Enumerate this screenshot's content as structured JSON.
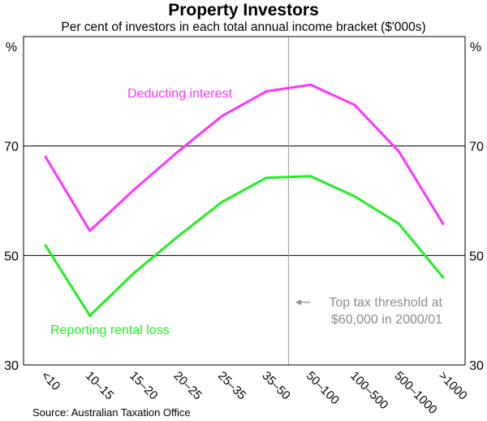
{
  "chart_data": {
    "type": "line",
    "title": "Property Investors",
    "subtitle": "Per cent of investors in each total annual income bracket ($'000s)",
    "y_unit": "%",
    "ylim": [
      30,
      90
    ],
    "yticks": [
      30,
      50,
      70
    ],
    "gridlines": [
      50,
      70
    ],
    "categories": [
      "<10",
      "10–15",
      "15–20",
      "20–25",
      "25–35",
      "35–50",
      "50–100",
      "100–500",
      "500–1000",
      ">1000"
    ],
    "series": [
      {
        "name": "Deducting interest",
        "color": "#ff33ff",
        "values": [
          68.0,
          54.5,
          62.0,
          69.0,
          75.5,
          80.0,
          81.2,
          77.5,
          69.0,
          55.8
        ]
      },
      {
        "name": "Reporting rental loss",
        "color": "#22ee22",
        "values": [
          51.8,
          39.0,
          46.8,
          53.5,
          59.8,
          64.2,
          64.5,
          60.8,
          55.8,
          46.0
        ]
      }
    ],
    "annotation": {
      "lines": [
        "Top tax threshold at",
        "$60,000 in 2000/01"
      ],
      "color": "#8c8c8c",
      "marker_between": [
        "35–50",
        "50–100"
      ]
    },
    "source": "Source: Australian Taxation Office"
  }
}
